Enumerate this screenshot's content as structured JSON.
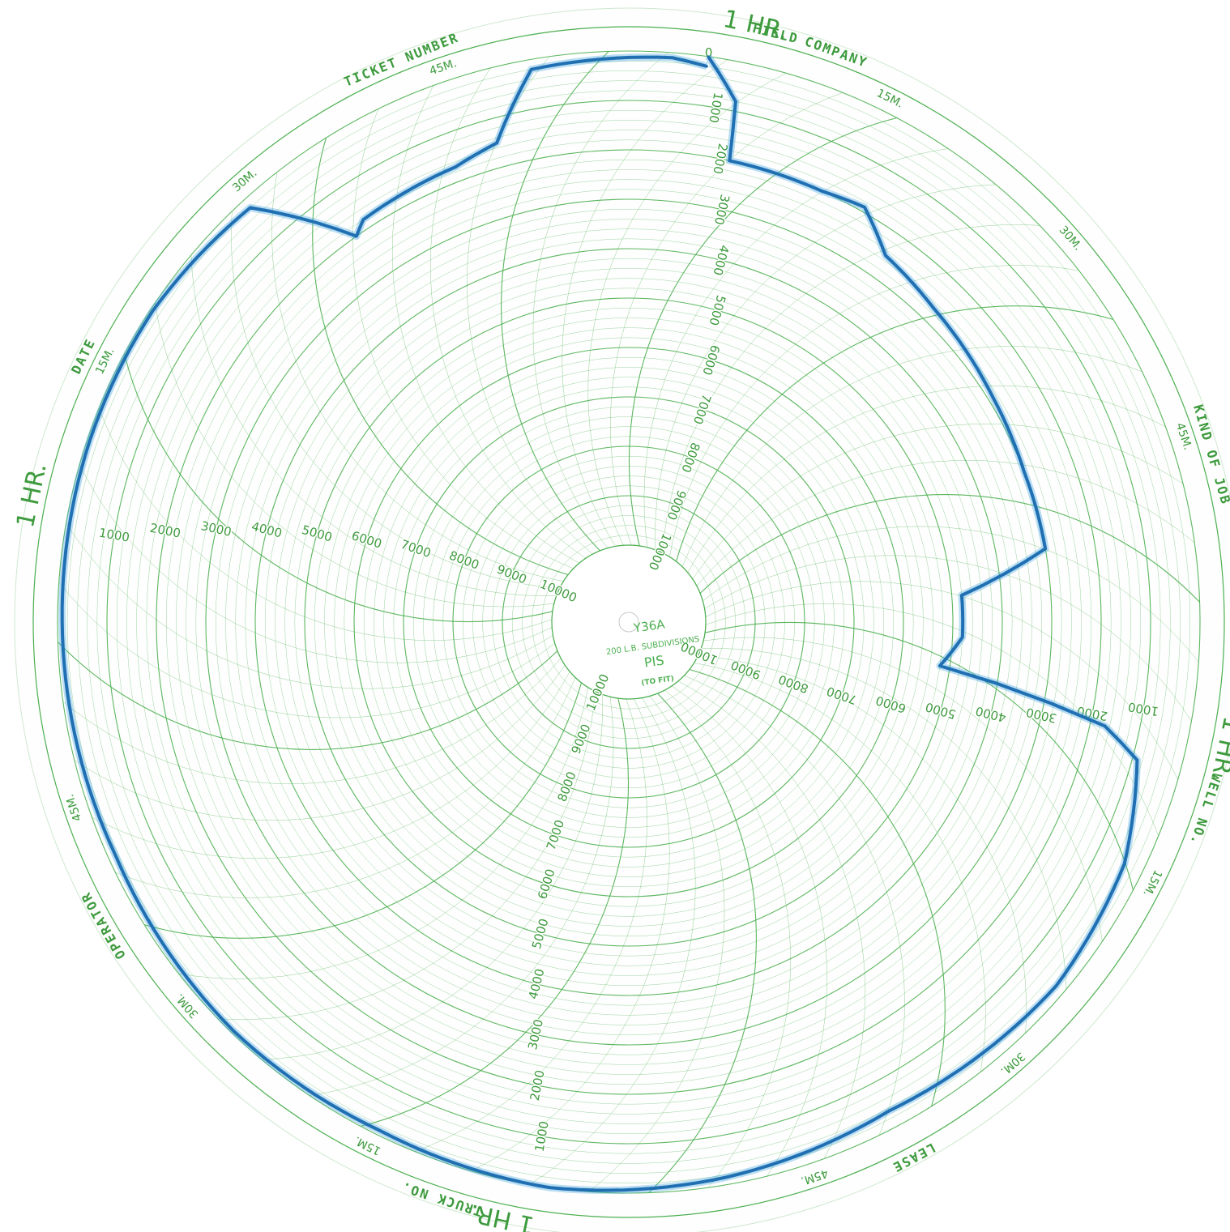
{
  "chart_data": {
    "type": "polar-recorder",
    "model": "Y36A",
    "subdivision_note": "200 L.B. SUBDIVISIONS",
    "unit": "PIS",
    "fit_note": "(TO FIT)",
    "pressure_range": [
      0,
      10000
    ],
    "pressure_ticks": [
      "1000",
      "2000",
      "3000",
      "4000",
      "5000",
      "6000",
      "7000",
      "8000",
      "9000",
      "10000"
    ],
    "zero_label": "0",
    "minute_subdivision": 200,
    "time_sections": 4,
    "hour_label": "1 HR.",
    "minute_labels": [
      "15M.",
      "30M.",
      "45M."
    ],
    "field_labels": [
      "FIELD",
      "KIND OF JOB",
      "WELL NO.",
      "LEASE",
      "TRUCK NO.",
      "OPERATOR",
      "DATE",
      "TICKET NUMBER",
      "COMPANY"
    ],
    "grid_color": "#4caf50",
    "trace_color": "#1f6fb2",
    "trace_light_color": "#3aa0e0",
    "trace": [
      {
        "t": 0.0,
        "p": 0
      },
      {
        "t": 0.01,
        "p": 800
      },
      {
        "t": 0.012,
        "p": 2000
      },
      {
        "t": 0.045,
        "p": 2000
      },
      {
        "t": 0.06,
        "p": 1900
      },
      {
        "t": 0.075,
        "p": 2500
      },
      {
        "t": 0.1,
        "p": 2700
      },
      {
        "t": 0.14,
        "p": 2900
      },
      {
        "t": 0.17,
        "p": 3000
      },
      {
        "t": 0.2,
        "p": 3000
      },
      {
        "t": 0.215,
        "p": 4800
      },
      {
        "t": 0.235,
        "p": 4800
      },
      {
        "t": 0.25,
        "p": 5200
      },
      {
        "t": 0.262,
        "p": 1700
      },
      {
        "t": 0.27,
        "p": 900
      },
      {
        "t": 0.3,
        "p": 400
      },
      {
        "t": 0.34,
        "p": 200
      },
      {
        "t": 0.4,
        "p": 350
      },
      {
        "t": 0.45,
        "p": 150
      },
      {
        "t": 0.5,
        "p": 0
      },
      {
        "t": 0.55,
        "p": 100
      },
      {
        "t": 0.6,
        "p": 50
      },
      {
        "t": 0.66,
        "p": 150
      },
      {
        "t": 0.72,
        "p": 100
      },
      {
        "t": 0.78,
        "p": 50
      },
      {
        "t": 0.82,
        "p": 50
      },
      {
        "t": 0.86,
        "p": 200
      },
      {
        "t": 0.88,
        "p": 2000
      },
      {
        "t": 0.885,
        "p": 1800
      },
      {
        "t": 0.92,
        "p": 1700
      },
      {
        "t": 0.935,
        "p": 1500
      },
      {
        "t": 0.95,
        "p": 200
      },
      {
        "t": 0.99,
        "p": 100
      },
      {
        "t": 1.0,
        "p": 200
      }
    ]
  }
}
